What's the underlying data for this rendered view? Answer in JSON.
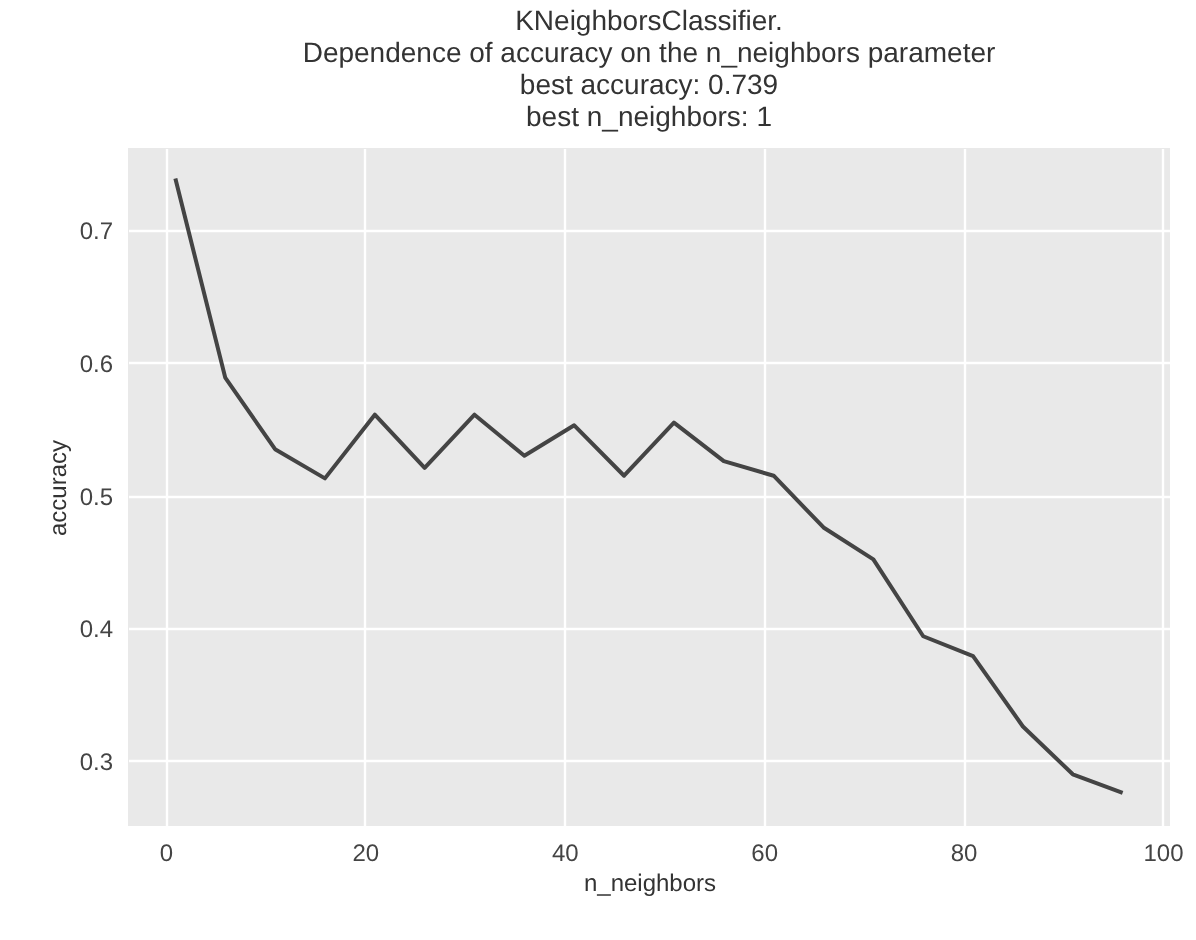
{
  "chart_data": {
    "type": "line",
    "title": [
      "KNeighborsClassifier.",
      "Dependence of accuracy on the n_neighbors parameter",
      "best accuracy: 0.739",
      "best n_neighbors: 1"
    ],
    "xlabel": "n_neighbors",
    "ylabel": "accuracy",
    "x": [
      1,
      6,
      11,
      16,
      21,
      26,
      31,
      36,
      41,
      46,
      51,
      56,
      61,
      66,
      71,
      76,
      81,
      86,
      91,
      96
    ],
    "series": [
      {
        "color": "#444444",
        "values": [
          0.739,
          0.589,
          0.535,
          0.513,
          0.561,
          0.521,
          0.561,
          0.53,
          0.553,
          0.515,
          0.555,
          0.526,
          0.515,
          0.476,
          0.452,
          0.394,
          0.379,
          0.326,
          0.29,
          0.276
        ]
      }
    ],
    "xlim": [
      -3.75,
      100.75
    ],
    "ylim": [
      0.251,
      0.762
    ],
    "xticks": [
      0,
      20,
      40,
      60,
      80,
      100
    ],
    "yticks": [
      0.3,
      0.4,
      0.5,
      0.6,
      0.7
    ],
    "grid": true,
    "line_style": "solid",
    "marker": "none"
  }
}
